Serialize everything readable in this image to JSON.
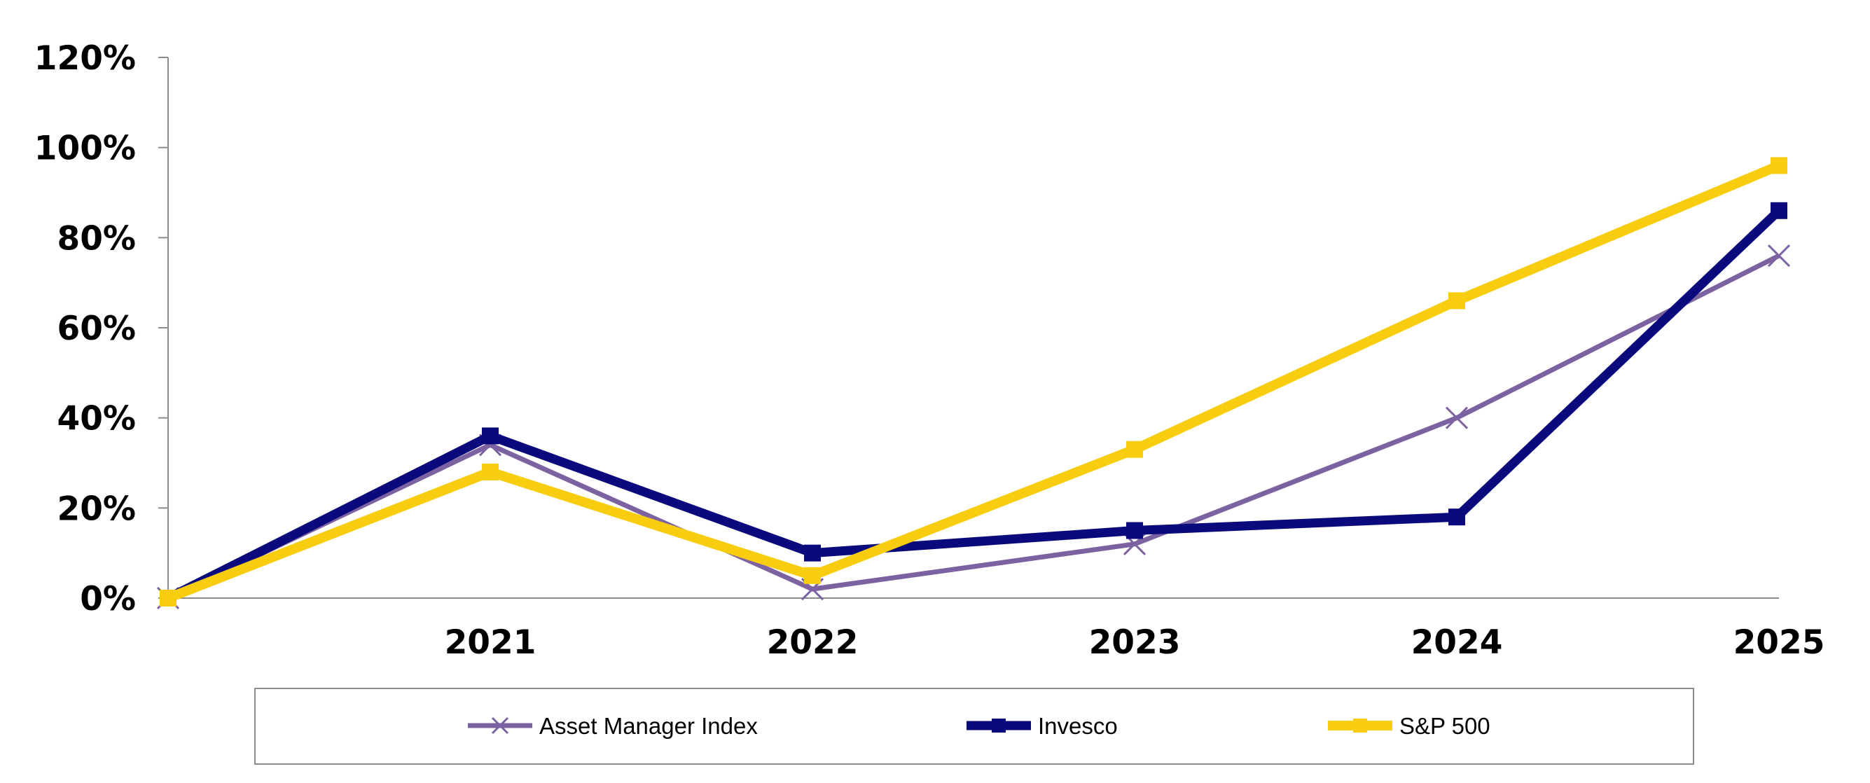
{
  "chart_data": {
    "type": "line",
    "title": "",
    "xlabel": "",
    "ylabel": "",
    "x": [
      "",
      "2021",
      "2022",
      "2023",
      "2024",
      "2025"
    ],
    "ylim": [
      0,
      120
    ],
    "y_ticks": [
      "0%",
      "20%",
      "40%",
      "60%",
      "80%",
      "100%",
      "120%"
    ],
    "y_unit": "%",
    "grid": false,
    "legend_position": "bottom",
    "series": [
      {
        "name": "Asset Manager Index",
        "values": [
          0,
          34,
          2,
          12,
          40,
          76
        ],
        "color": "#7c62a0",
        "marker": "x"
      },
      {
        "name": "Invesco",
        "values": [
          0,
          36,
          10,
          15,
          18,
          86
        ],
        "color": "#0a0a7c",
        "marker": "square"
      },
      {
        "name": "S&P 500",
        "values": [
          0,
          28,
          5,
          33,
          66,
          96
        ],
        "color": "#f9cd0f",
        "marker": "square"
      }
    ]
  }
}
